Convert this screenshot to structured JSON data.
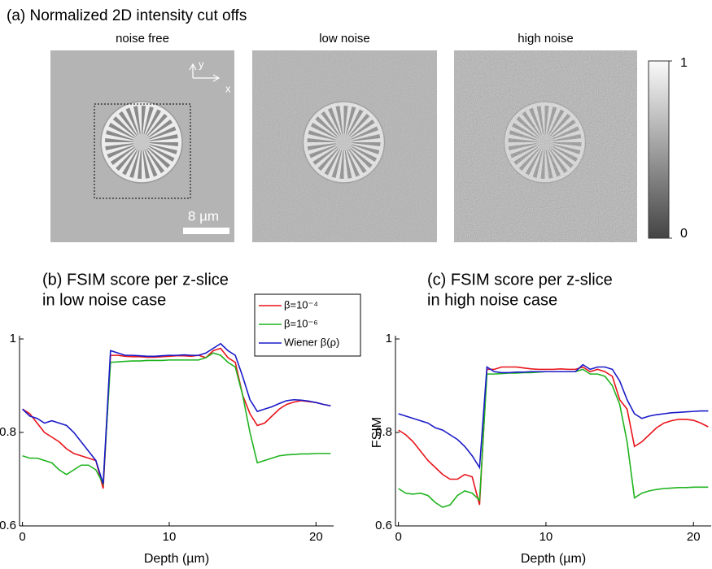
{
  "panel_a": {
    "title": "(a) Normalized 2D intensity cut offs",
    "labels": [
      "noise free",
      "low noise",
      "high noise"
    ],
    "axis_labels": {
      "y": "y",
      "x": "x"
    },
    "scale_bar": "8 µm",
    "colorbar": {
      "lim": [
        0,
        1
      ],
      "ticks": [
        0,
        1
      ]
    }
  },
  "chart_data": [
    {
      "type": "line",
      "title": [
        "(b) FSIM score per z-slice",
        "in low noise case"
      ],
      "xlabel": "Depth (µm)",
      "legend": "upper right",
      "xlim": [
        -0.2,
        21.2
      ],
      "ylim": [
        0.6,
        1.0
      ],
      "xticks": [
        0,
        10,
        20
      ],
      "yticks": [
        0.6,
        0.8,
        1
      ],
      "x": [
        0,
        0.5,
        1,
        1.5,
        2,
        2.5,
        3,
        3.5,
        4,
        4.5,
        5,
        5.5,
        6,
        6.5,
        7,
        7.5,
        8,
        8.5,
        9,
        9.5,
        10,
        10.5,
        11,
        11.5,
        12,
        12.5,
        13,
        13.5,
        14,
        14.5,
        15,
        15.5,
        16,
        16.5,
        17,
        17.5,
        18,
        18.5,
        19,
        19.5,
        20,
        20.5,
        21
      ],
      "series": [
        {
          "name": "β=10⁻⁴",
          "color": "#e8141b",
          "values": [
            0.85,
            0.84,
            0.82,
            0.8,
            0.79,
            0.78,
            0.765,
            0.755,
            0.75,
            0.745,
            0.74,
            0.68,
            0.965,
            0.965,
            0.963,
            0.962,
            0.962,
            0.961,
            0.961,
            0.962,
            0.963,
            0.964,
            0.964,
            0.963,
            0.965,
            0.96,
            0.975,
            0.98,
            0.96,
            0.95,
            0.88,
            0.84,
            0.815,
            0.82,
            0.835,
            0.85,
            0.86,
            0.865,
            0.868,
            0.866,
            0.864,
            0.86,
            0.857
          ]
        },
        {
          "name": "β=10⁻⁶",
          "color": "#1fb41f",
          "values": [
            0.75,
            0.745,
            0.745,
            0.74,
            0.735,
            0.72,
            0.71,
            0.72,
            0.73,
            0.73,
            0.72,
            0.69,
            0.95,
            0.951,
            0.952,
            0.953,
            0.953,
            0.954,
            0.954,
            0.954,
            0.955,
            0.955,
            0.955,
            0.955,
            0.955,
            0.96,
            0.97,
            0.965,
            0.95,
            0.94,
            0.88,
            0.8,
            0.735,
            0.74,
            0.745,
            0.75,
            0.752,
            0.753,
            0.754,
            0.754,
            0.755,
            0.755,
            0.755
          ]
        },
        {
          "name": "Wiener β(ρ)",
          "color": "#1a1ac8",
          "values": [
            0.85,
            0.835,
            0.83,
            0.82,
            0.825,
            0.82,
            0.815,
            0.8,
            0.78,
            0.76,
            0.74,
            0.69,
            0.975,
            0.97,
            0.965,
            0.965,
            0.964,
            0.963,
            0.963,
            0.964,
            0.965,
            0.965,
            0.966,
            0.965,
            0.965,
            0.97,
            0.98,
            0.99,
            0.975,
            0.965,
            0.92,
            0.87,
            0.845,
            0.85,
            0.855,
            0.862,
            0.868,
            0.87,
            0.869,
            0.867,
            0.864,
            0.86,
            0.857
          ]
        }
      ]
    },
    {
      "type": "line",
      "title": [
        "(c) FSIM score per z-slice",
        "in high noise case"
      ],
      "xlabel": "Depth (µm)",
      "ylabel": "FSIM",
      "xlim": [
        -0.2,
        21.2
      ],
      "ylim": [
        0.6,
        1.0
      ],
      "xticks": [
        0,
        10,
        20
      ],
      "yticks": [
        0.6,
        0.8,
        1
      ],
      "x": [
        0,
        0.5,
        1,
        1.5,
        2,
        2.5,
        3,
        3.5,
        4,
        4.5,
        5,
        5.5,
        6,
        6.5,
        7,
        7.5,
        8,
        8.5,
        9,
        9.5,
        10,
        10.5,
        11,
        11.5,
        12,
        12.5,
        13,
        13.5,
        14,
        14.5,
        15,
        15.5,
        16,
        16.5,
        17,
        17.5,
        18,
        18.5,
        19,
        19.5,
        20,
        20.5,
        21
      ],
      "series": [
        {
          "color": "#e8141b",
          "values": [
            0.805,
            0.795,
            0.78,
            0.76,
            0.74,
            0.725,
            0.71,
            0.7,
            0.7,
            0.71,
            0.705,
            0.645,
            0.935,
            0.935,
            0.94,
            0.94,
            0.94,
            0.938,
            0.936,
            0.935,
            0.935,
            0.935,
            0.936,
            0.935,
            0.935,
            0.94,
            0.93,
            0.935,
            0.93,
            0.92,
            0.87,
            0.85,
            0.77,
            0.78,
            0.795,
            0.81,
            0.82,
            0.825,
            0.828,
            0.828,
            0.826,
            0.82,
            0.812
          ]
        },
        {
          "color": "#1fb41f",
          "values": [
            0.68,
            0.67,
            0.668,
            0.67,
            0.665,
            0.65,
            0.64,
            0.645,
            0.665,
            0.675,
            0.67,
            0.655,
            0.925,
            0.925,
            0.926,
            0.927,
            0.927,
            0.928,
            0.928,
            0.929,
            0.93,
            0.93,
            0.93,
            0.93,
            0.93,
            0.935,
            0.925,
            0.925,
            0.92,
            0.9,
            0.86,
            0.78,
            0.66,
            0.67,
            0.675,
            0.678,
            0.68,
            0.681,
            0.682,
            0.682,
            0.683,
            0.683,
            0.683
          ]
        },
        {
          "color": "#1a1ac8",
          "values": [
            0.84,
            0.835,
            0.83,
            0.825,
            0.82,
            0.81,
            0.805,
            0.795,
            0.785,
            0.77,
            0.75,
            0.725,
            0.94,
            0.93,
            0.928,
            0.928,
            0.929,
            0.929,
            0.93,
            0.93,
            0.93,
            0.93,
            0.93,
            0.93,
            0.93,
            0.945,
            0.935,
            0.94,
            0.94,
            0.935,
            0.91,
            0.87,
            0.84,
            0.83,
            0.835,
            0.838,
            0.84,
            0.842,
            0.843,
            0.844,
            0.845,
            0.846,
            0.846
          ]
        }
      ]
    }
  ]
}
